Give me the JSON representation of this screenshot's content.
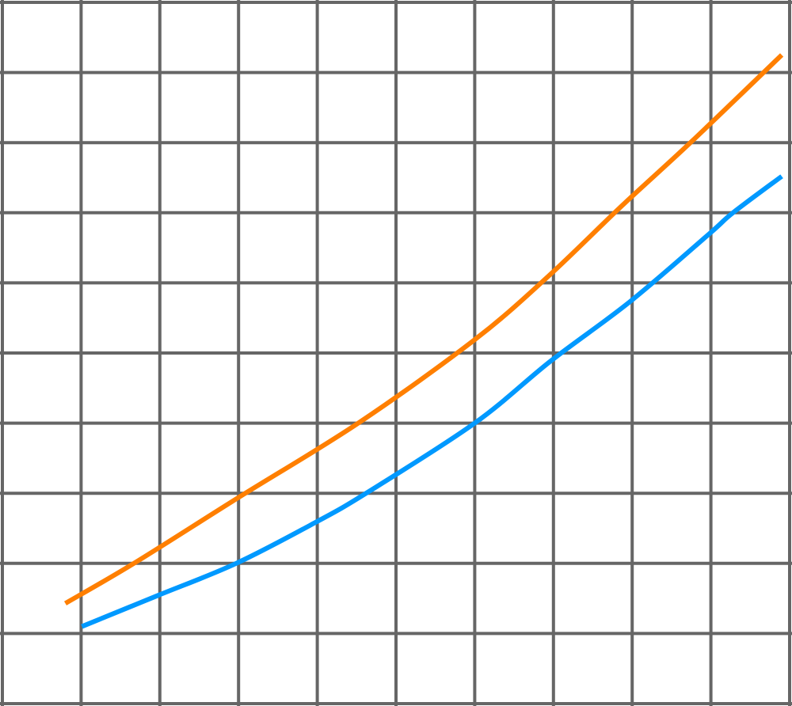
{
  "chart_data": {
    "type": "line",
    "title": "",
    "xlabel": "",
    "ylabel": "",
    "xlim": [
      0,
      10
    ],
    "ylim": [
      0,
      10
    ],
    "grid": true,
    "grid_color": "#666666",
    "background": "#ffffff",
    "series": [
      {
        "color": "#ff7f00",
        "x": [
          0.8,
          1.67,
          3.0,
          4.52,
          6.0,
          6.94,
          7.87,
          8.74,
          9.9
        ],
        "y": [
          1.43,
          2.0,
          2.94,
          4.0,
          5.19,
          6.1,
          7.1,
          8.0,
          9.25
        ]
      },
      {
        "color": "#0099ff",
        "x": [
          1.01,
          1.97,
          2.97,
          3.97,
          4.62,
          6.0,
          6.97,
          7.97,
          8.98,
          9.28,
          9.9
        ],
        "y": [
          1.1,
          1.54,
          2.0,
          2.58,
          3.0,
          4.0,
          4.89,
          5.73,
          6.7,
          7.0,
          7.52
        ]
      }
    ]
  }
}
